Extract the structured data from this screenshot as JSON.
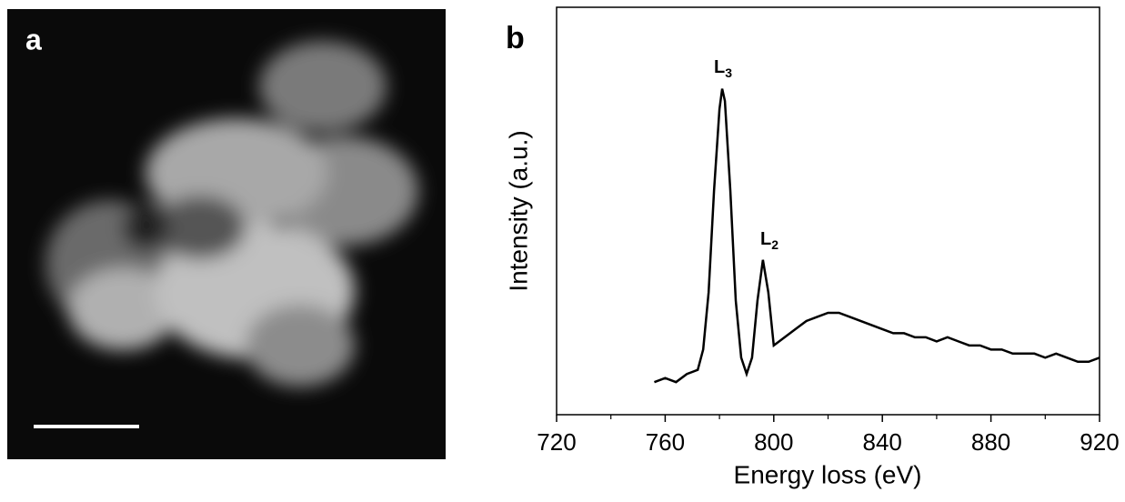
{
  "panel_a": {
    "label": "a"
  },
  "chart_data": {
    "type": "line",
    "panel_label": "b",
    "xlabel": "Energy loss (eV)",
    "ylabel": "Intensity (a.u.)",
    "x": [
      756,
      760,
      764,
      768,
      772,
      774,
      776,
      778,
      780,
      781,
      782,
      784,
      786,
      788,
      790,
      792,
      794,
      796,
      798,
      800,
      804,
      808,
      812,
      816,
      820,
      824,
      828,
      832,
      836,
      840,
      844,
      848,
      852,
      856,
      860,
      864,
      868,
      872,
      876,
      880,
      884,
      888,
      892,
      896,
      900,
      904,
      908,
      912,
      916,
      920
    ],
    "series": [
      {
        "color": "#000000",
        "values": [
          8,
          9,
          8,
          10,
          11,
          16,
          30,
          55,
          75,
          80,
          77,
          55,
          28,
          14,
          10,
          14,
          28,
          38,
          30,
          17,
          19,
          21,
          23,
          24,
          25,
          25,
          24,
          23,
          22,
          21,
          20,
          20,
          19,
          19,
          18,
          19,
          18,
          17,
          17,
          16,
          16,
          15,
          15,
          15,
          14,
          15,
          14,
          13,
          13,
          14
        ]
      }
    ],
    "xlim": [
      720,
      920
    ],
    "xticks": [
      720,
      760,
      800,
      840,
      880,
      920
    ],
    "xminorticks": [
      740,
      780,
      820,
      860,
      900
    ],
    "ylim": [
      0,
      100
    ],
    "annotations": [
      {
        "text": "L",
        "subscript": "3"
      },
      {
        "text": "L",
        "subscript": "2"
      }
    ]
  }
}
